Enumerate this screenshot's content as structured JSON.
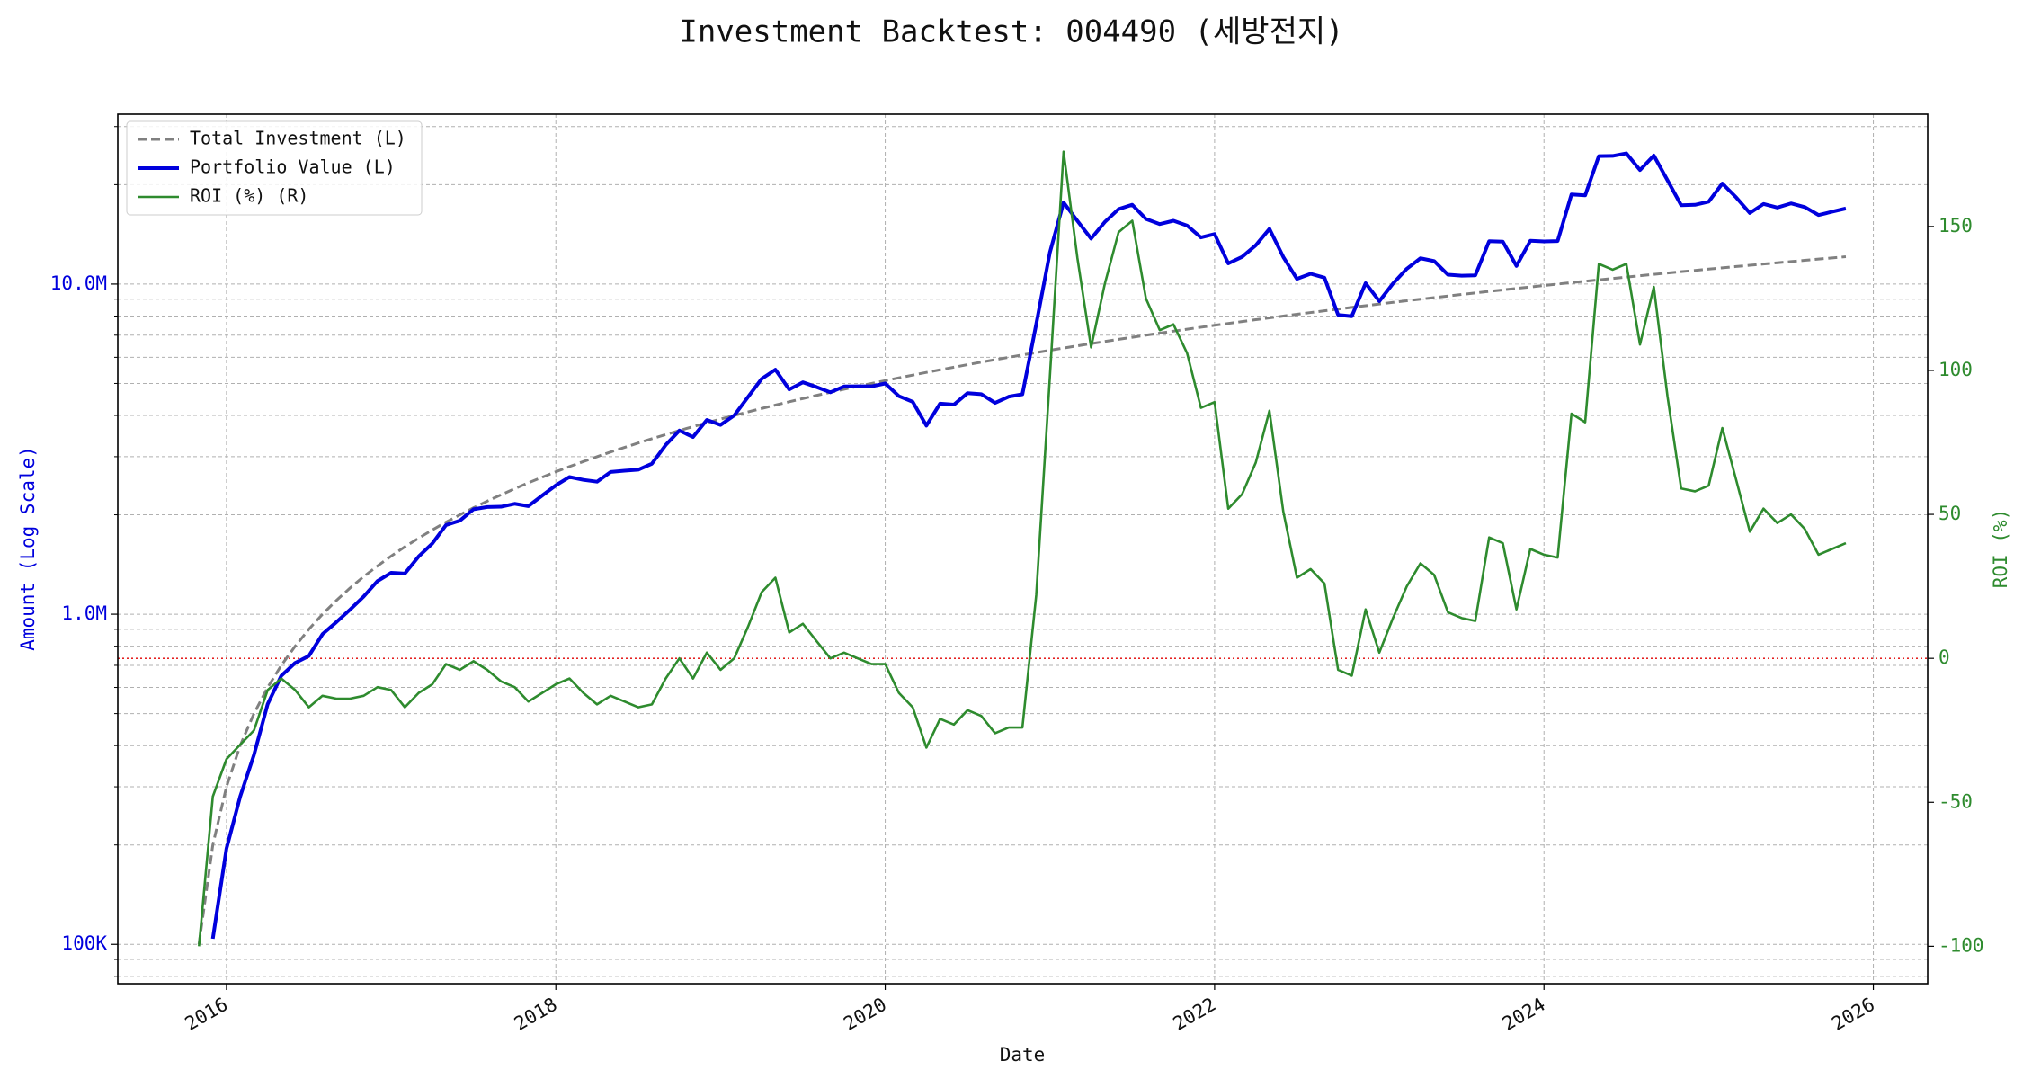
{
  "chart_data": {
    "type": "line",
    "title": "Investment Backtest: 004490 (세방전지)",
    "x_label": "Date",
    "y_label": "Amount (Log Scale)",
    "y2_label": "ROI (%)",
    "y_scale": "log",
    "grid": true,
    "legend": "upper left",
    "xlim": [
      2015.34,
      2026.33
    ],
    "xticks": [
      2016,
      2018,
      2020,
      2022,
      2024,
      2026
    ],
    "ylim": [
      76000,
      32700000
    ],
    "yticks": [
      {
        "value": 100000,
        "label": "100K"
      },
      {
        "value": 1000000,
        "label": "1.0M"
      },
      {
        "value": 10000000,
        "label": "10.0M"
      }
    ],
    "yminorticks": [
      80000,
      90000,
      200000,
      300000,
      400000,
      500000,
      600000,
      700000,
      800000,
      900000,
      2000000,
      3000000,
      4000000,
      5000000,
      6000000,
      7000000,
      8000000,
      9000000,
      20000000,
      30000000
    ],
    "y2lim": [
      -113,
      189
    ],
    "y2ticks": [
      -100,
      -50,
      0,
      50,
      100,
      150
    ],
    "reference_line": {
      "value": 0,
      "axis": "y2",
      "color": "#e00000"
    },
    "x": [
      2015.833,
      2015.917,
      2016,
      2016.083,
      2016.167,
      2016.25,
      2016.333,
      2016.417,
      2016.5,
      2016.583,
      2016.667,
      2016.75,
      2016.833,
      2016.917,
      2017,
      2017.083,
      2017.167,
      2017.25,
      2017.333,
      2017.417,
      2017.5,
      2017.583,
      2017.667,
      2017.75,
      2017.833,
      2017.917,
      2018,
      2018.083,
      2018.167,
      2018.25,
      2018.333,
      2018.417,
      2018.5,
      2018.583,
      2018.667,
      2018.75,
      2018.833,
      2018.917,
      2019,
      2019.083,
      2019.167,
      2019.25,
      2019.333,
      2019.417,
      2019.5,
      2019.583,
      2019.667,
      2019.75,
      2019.833,
      2019.917,
      2020,
      2020.083,
      2020.167,
      2020.25,
      2020.333,
      2020.417,
      2020.5,
      2020.583,
      2020.667,
      2020.75,
      2020.833,
      2020.917,
      2021,
      2021.083,
      2021.167,
      2021.25,
      2021.333,
      2021.417,
      2021.5,
      2021.583,
      2021.667,
      2021.75,
      2021.833,
      2021.917,
      2022,
      2022.083,
      2022.167,
      2022.25,
      2022.333,
      2022.417,
      2022.5,
      2022.583,
      2022.667,
      2022.75,
      2022.833,
      2022.917,
      2023,
      2023.083,
      2023.167,
      2023.25,
      2023.333,
      2023.417,
      2023.5,
      2023.583,
      2023.667,
      2023.75,
      2023.833,
      2023.917,
      2024,
      2024.083,
      2024.167,
      2024.25,
      2024.333,
      2024.417,
      2024.5,
      2024.583,
      2024.667,
      2024.75,
      2024.833,
      2024.917,
      2025,
      2025.083,
      2025.167,
      2025.25,
      2025.333,
      2025.417,
      2025.5,
      2025.583,
      2025.667,
      2025.75,
      2025.833
    ],
    "series": [
      {
        "name": "Total Investment (L)",
        "color": "#808080",
        "linestyle": "dashed",
        "width": 3,
        "axis": "y",
        "values": [
          100000,
          200000,
          300000,
          400000,
          500000,
          600000,
          700000,
          800000,
          900000,
          1000000,
          1100000,
          1200000,
          1300000,
          1400000,
          1500000,
          1600000,
          1700000,
          1800000,
          1900000,
          2000000,
          2100000,
          2200000,
          2300000,
          2400000,
          2500000,
          2600000,
          2700000,
          2800000,
          2900000,
          3000000,
          3100000,
          3200000,
          3300000,
          3400000,
          3500000,
          3600000,
          3700000,
          3800000,
          3900000,
          4000000,
          4100000,
          4200000,
          4300000,
          4400000,
          4500000,
          4600000,
          4700000,
          4800000,
          4900000,
          5000000,
          5100000,
          5200000,
          5300000,
          5400000,
          5500000,
          5600000,
          5700000,
          5800000,
          5900000,
          6000000,
          6100000,
          6200000,
          6300000,
          6400000,
          6500000,
          6600000,
          6700000,
          6800000,
          6900000,
          7000000,
          7100000,
          7200000,
          7300000,
          7400000,
          7500000,
          7600000,
          7700000,
          7800000,
          7900000,
          8000000,
          8100000,
          8200000,
          8300000,
          8400000,
          8500000,
          8600000,
          8700000,
          8800000,
          8900000,
          9000000,
          9100000,
          9200000,
          9300000,
          9400000,
          9500000,
          9600000,
          9700000,
          9800000,
          9900000,
          10000000,
          10100000,
          10200000,
          10300000,
          10400000,
          10500000,
          10600000,
          10700000,
          10800000,
          10900000,
          11000000,
          11100000,
          11200000,
          11300000,
          11400000,
          11500000,
          11600000,
          11700000,
          11800000,
          11900000,
          12000000,
          12100000
        ]
      },
      {
        "name": "Portfolio Value (L)",
        "color": "#0000dd",
        "linestyle": "solid",
        "width": 4,
        "axis": "y",
        "values": [
          null,
          104000,
          195000,
          280000,
          375000,
          534000,
          651000,
          712000,
          747000,
          870000,
          946000,
          1032000,
          1131000,
          1260000,
          1335000,
          1328000,
          1496000,
          1638000,
          1862000,
          1920000,
          2079000,
          2112000,
          2116000,
          2160000,
          2125000,
          2288000,
          2457000,
          2604000,
          2552000,
          2520000,
          2697000,
          2720000,
          2739000,
          2856000,
          3255000,
          3600000,
          3441000,
          3876000,
          3744000,
          4000000,
          4551000,
          5166000,
          5504000,
          4796000,
          5040000,
          4876000,
          4700000,
          4896000,
          4900000,
          4900000,
          4998000,
          4576000,
          4399000,
          3726000,
          4345000,
          4312000,
          4674000,
          4640000,
          4366000,
          4560000,
          4636000,
          7564000,
          12474000,
          17664000,
          15535000,
          13728000,
          15410000,
          16864000,
          17388000,
          15750000,
          15194000,
          15552000,
          15038000,
          13838000,
          14175000,
          11552000,
          12089000,
          13104000,
          14694000,
          12080000,
          10368000,
          10742000,
          10458000,
          8064000,
          7990000,
          10062000,
          8874000,
          10032000,
          11125000,
          11970000,
          11739000,
          10672000,
          10602000,
          10622000,
          13490000,
          13440000,
          11349000,
          13524000,
          13464000,
          13500000,
          18685000,
          18564000,
          24411000,
          24440000,
          24885000,
          22154000,
          24503000,
          20628000,
          17331000,
          17380000,
          17760000,
          20160000,
          18306000,
          16416000,
          17480000,
          17052000,
          17550000,
          17110000,
          16184000,
          16560000,
          16940000
        ]
      },
      {
        "name": "ROI (%) (R)",
        "color": "#2e8b2e",
        "linestyle": "solid",
        "width": 2.6,
        "axis": "y2",
        "values": [
          -100,
          -48,
          -35,
          -30,
          -25,
          -11,
          -7,
          -11,
          -17,
          -13,
          -14,
          -14,
          -13,
          -10,
          -11,
          -17,
          -12,
          -9,
          -2,
          -4,
          -1,
          -4,
          -8,
          -10,
          -15,
          -12,
          -9,
          -7,
          -12,
          -16,
          -13,
          -15,
          -17,
          -16,
          -7,
          0,
          -7,
          2,
          -4,
          0,
          11,
          23,
          28,
          9,
          12,
          6,
          0,
          2,
          0,
          -2,
          -2,
          -12,
          -17,
          -31,
          -21,
          -23,
          -18,
          -20,
          -26,
          -24,
          -24,
          22,
          98,
          176,
          139,
          108,
          130,
          148,
          152,
          125,
          114,
          116,
          106,
          87,
          89,
          52,
          57,
          68,
          86,
          51,
          28,
          31,
          26,
          -4,
          -6,
          17,
          2,
          14,
          25,
          33,
          29,
          16,
          14,
          13,
          42,
          40,
          17,
          38,
          36,
          35,
          85,
          82,
          137,
          135,
          137,
          109,
          129,
          91,
          59,
          58,
          60,
          80,
          62,
          44,
          52,
          47,
          50,
          45,
          36,
          38,
          40
        ]
      }
    ]
  }
}
